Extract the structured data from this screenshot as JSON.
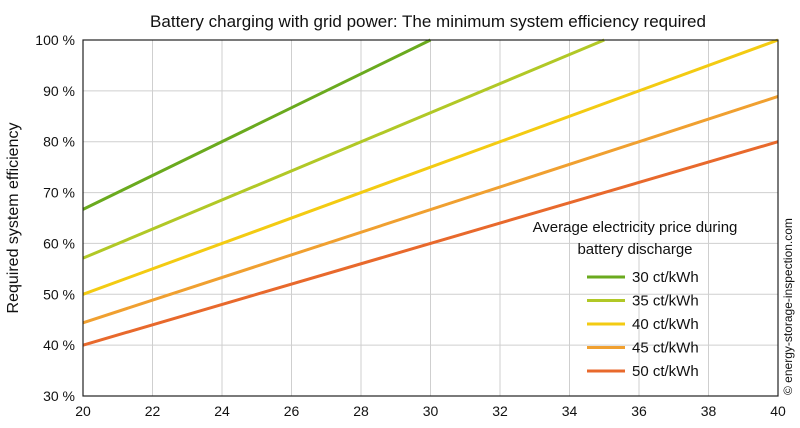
{
  "chart_data": {
    "type": "line",
    "title": "Battery charging with grid power: The minimum system efficiency required",
    "ylabel": "Required system efficiency",
    "xlabel": "",
    "xlim": [
      20,
      40
    ],
    "ylim": [
      30,
      100
    ],
    "x_ticks": [
      "20",
      "22",
      "24",
      "26",
      "28",
      "30",
      "32",
      "34",
      "36",
      "38",
      "40"
    ],
    "y_ticks": [
      "30 %",
      "40 %",
      "50 %",
      "60 %",
      "70 %",
      "80 %",
      "90 %",
      "100 %"
    ],
    "grid": true,
    "legend": {
      "title_line1": "Average electricity price during",
      "title_line2": "battery discharge",
      "placement": "right"
    },
    "series": [
      {
        "name": "30 ct/kWh",
        "color": "#6aaa1e",
        "x": [
          20,
          30
        ],
        "y": [
          66.7,
          100
        ]
      },
      {
        "name": "35 ct/kWh",
        "color": "#b1c826",
        "x": [
          20,
          35
        ],
        "y": [
          57.1,
          100
        ]
      },
      {
        "name": "40 ct/kWh",
        "color": "#f3cb12",
        "x": [
          20,
          40
        ],
        "y": [
          50,
          100
        ]
      },
      {
        "name": "45 ct/kWh",
        "color": "#f0a030",
        "x": [
          20,
          40
        ],
        "y": [
          44.4,
          88.9
        ]
      },
      {
        "name": "50 ct/kWh",
        "color": "#e8692c",
        "x": [
          20,
          40
        ],
        "y": [
          40,
          80
        ]
      }
    ]
  },
  "watermark": "© energy-storage-inspection.com"
}
